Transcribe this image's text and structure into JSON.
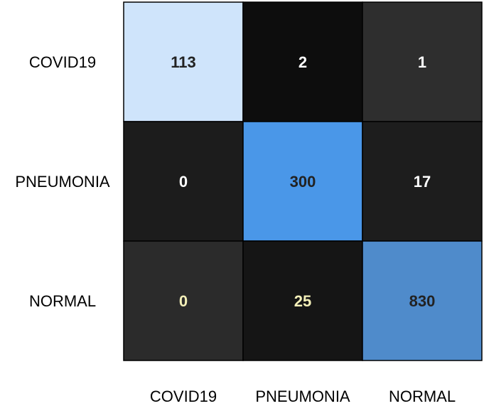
{
  "chart_data": {
    "type": "heatmap",
    "title": "",
    "xlabel": "",
    "ylabel": "",
    "row_labels": [
      "COVID19",
      "PNEUMONIA",
      "NORMAL"
    ],
    "col_labels": [
      "COVID19",
      "PNEUMONIA",
      "NORMAL"
    ],
    "values": [
      [
        113,
        2,
        1
      ],
      [
        0,
        300,
        17
      ],
      [
        0,
        25,
        830
      ]
    ],
    "cell_colors": [
      [
        "#cfe4fb",
        "#0d0d0d",
        "#2e2e2e"
      ],
      [
        "#1c1c1c",
        "#4a97e8",
        "#1d1d1d"
      ],
      [
        "#2b2b2b",
        "#151515",
        "#4f8bcb"
      ]
    ],
    "text_colors": [
      [
        "#222222",
        "#ffffff",
        "#ffffff"
      ],
      [
        "#ffffff",
        "#222222",
        "#ffffff"
      ],
      [
        "#f3efb8",
        "#f3efb8",
        "#222222"
      ]
    ],
    "grid_color": "#000000",
    "colorbar": false
  }
}
